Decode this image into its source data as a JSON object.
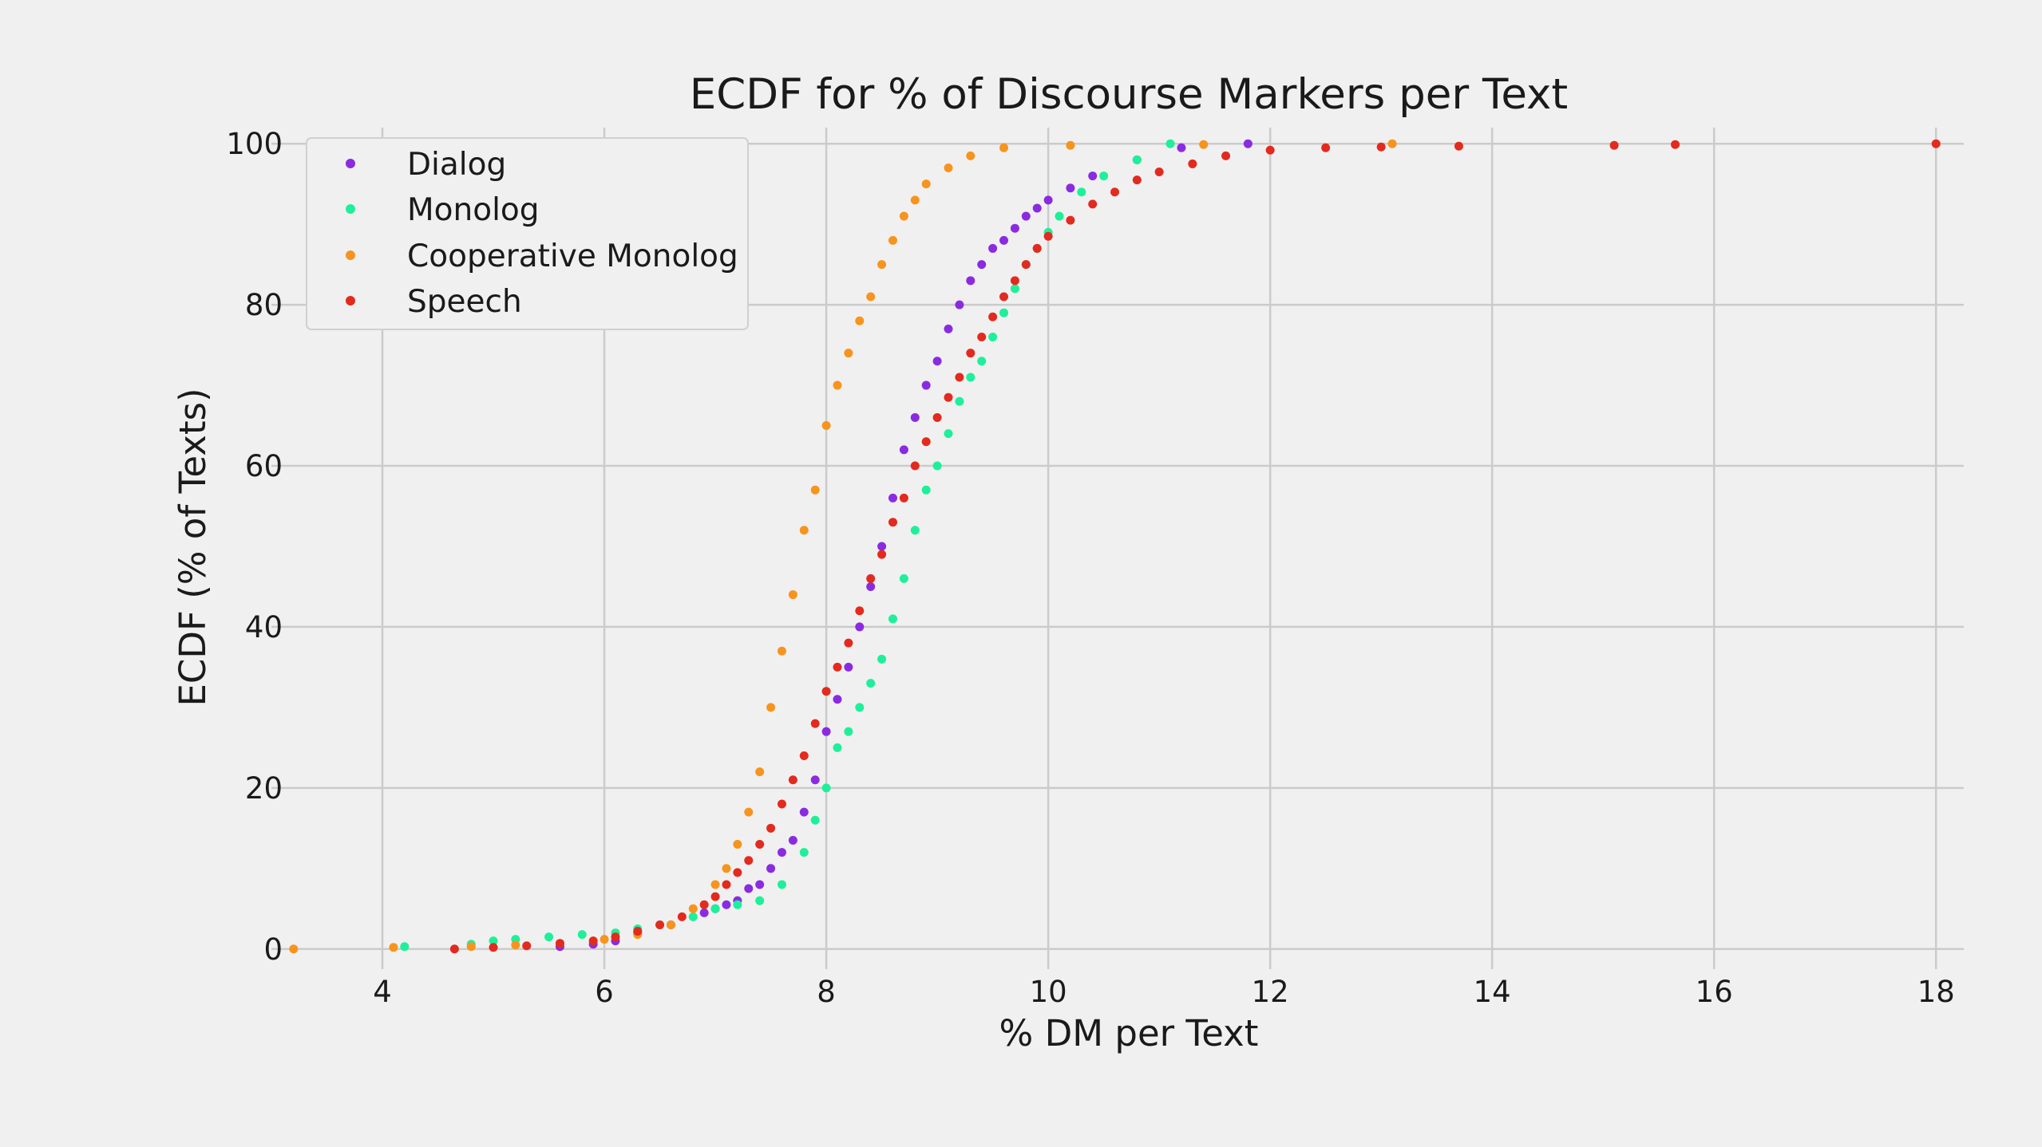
{
  "chart_data": {
    "type": "scatter",
    "title": "ECDF for % of Discourse Markers per Text",
    "xlabel": "% DM per Text",
    "ylabel": "ECDF (% of Texts)",
    "xlim": [
      3.0,
      18.25
    ],
    "ylim": [
      -2.5,
      102.0
    ],
    "x_ticks": [
      4,
      6,
      8,
      10,
      12,
      14,
      16,
      18
    ],
    "y_ticks": [
      0,
      20,
      40,
      60,
      80,
      100
    ],
    "grid": true,
    "legend_position": "top-left",
    "series": [
      {
        "name": "Dialog",
        "color": "#8a2be2",
        "points": [
          [
            5.6,
            0.3
          ],
          [
            5.9,
            0.6
          ],
          [
            6.1,
            1.0
          ],
          [
            6.3,
            2.0
          ],
          [
            6.6,
            3.0
          ],
          [
            6.9,
            4.5
          ],
          [
            7.0,
            5.0
          ],
          [
            7.1,
            5.5
          ],
          [
            7.2,
            6.0
          ],
          [
            7.3,
            7.5
          ],
          [
            7.4,
            8.0
          ],
          [
            7.5,
            10.0
          ],
          [
            7.6,
            12.0
          ],
          [
            7.7,
            13.5
          ],
          [
            7.8,
            17.0
          ],
          [
            7.9,
            21.0
          ],
          [
            8.0,
            27.0
          ],
          [
            8.1,
            31.0
          ],
          [
            8.2,
            35.0
          ],
          [
            8.3,
            40.0
          ],
          [
            8.4,
            45.0
          ],
          [
            8.5,
            50.0
          ],
          [
            8.6,
            56.0
          ],
          [
            8.7,
            62.0
          ],
          [
            8.8,
            66.0
          ],
          [
            8.9,
            70.0
          ],
          [
            9.0,
            73.0
          ],
          [
            9.1,
            77.0
          ],
          [
            9.2,
            80.0
          ],
          [
            9.3,
            83.0
          ],
          [
            9.4,
            85.0
          ],
          [
            9.5,
            87.0
          ],
          [
            9.6,
            88.0
          ],
          [
            9.7,
            89.5
          ],
          [
            9.8,
            91.0
          ],
          [
            9.9,
            92.0
          ],
          [
            10.0,
            93.0
          ],
          [
            10.2,
            94.5
          ],
          [
            10.4,
            96.0
          ],
          [
            10.8,
            98.0
          ],
          [
            11.2,
            99.5
          ],
          [
            11.8,
            100.0
          ]
        ]
      },
      {
        "name": "Monolog",
        "color": "#1ef09a",
        "points": [
          [
            4.2,
            0.3
          ],
          [
            4.8,
            0.6
          ],
          [
            5.0,
            1.0
          ],
          [
            5.2,
            1.2
          ],
          [
            5.5,
            1.5
          ],
          [
            5.8,
            1.8
          ],
          [
            6.1,
            2.0
          ],
          [
            6.3,
            2.5
          ],
          [
            6.5,
            3.0
          ],
          [
            6.8,
            4.0
          ],
          [
            7.0,
            5.0
          ],
          [
            7.2,
            5.5
          ],
          [
            7.4,
            6.0
          ],
          [
            7.6,
            8.0
          ],
          [
            7.8,
            12.0
          ],
          [
            7.9,
            16.0
          ],
          [
            8.0,
            20.0
          ],
          [
            8.1,
            25.0
          ],
          [
            8.2,
            27.0
          ],
          [
            8.3,
            30.0
          ],
          [
            8.4,
            33.0
          ],
          [
            8.5,
            36.0
          ],
          [
            8.6,
            41.0
          ],
          [
            8.7,
            46.0
          ],
          [
            8.8,
            52.0
          ],
          [
            8.9,
            57.0
          ],
          [
            9.0,
            60.0
          ],
          [
            9.1,
            64.0
          ],
          [
            9.2,
            68.0
          ],
          [
            9.3,
            71.0
          ],
          [
            9.4,
            73.0
          ],
          [
            9.5,
            76.0
          ],
          [
            9.6,
            79.0
          ],
          [
            9.7,
            82.0
          ],
          [
            9.8,
            85.0
          ],
          [
            9.9,
            87.0
          ],
          [
            10.0,
            89.0
          ],
          [
            10.1,
            91.0
          ],
          [
            10.3,
            94.0
          ],
          [
            10.5,
            96.0
          ],
          [
            10.8,
            98.0
          ],
          [
            11.1,
            100.0
          ]
        ]
      },
      {
        "name": "Cooperative Monolog",
        "color": "#f7941d",
        "points": [
          [
            3.2,
            0.0
          ],
          [
            4.1,
            0.2
          ],
          [
            4.8,
            0.3
          ],
          [
            5.2,
            0.5
          ],
          [
            5.6,
            0.7
          ],
          [
            6.0,
            1.2
          ],
          [
            6.3,
            1.8
          ],
          [
            6.6,
            3.0
          ],
          [
            6.8,
            5.0
          ],
          [
            7.0,
            8.0
          ],
          [
            7.1,
            10.0
          ],
          [
            7.2,
            13.0
          ],
          [
            7.3,
            17.0
          ],
          [
            7.4,
            22.0
          ],
          [
            7.5,
            30.0
          ],
          [
            7.6,
            37.0
          ],
          [
            7.7,
            44.0
          ],
          [
            7.8,
            52.0
          ],
          [
            7.9,
            57.0
          ],
          [
            8.0,
            65.0
          ],
          [
            8.1,
            70.0
          ],
          [
            8.2,
            74.0
          ],
          [
            8.3,
            78.0
          ],
          [
            8.4,
            81.0
          ],
          [
            8.5,
            85.0
          ],
          [
            8.6,
            88.0
          ],
          [
            8.7,
            91.0
          ],
          [
            8.8,
            93.0
          ],
          [
            8.9,
            95.0
          ],
          [
            9.1,
            97.0
          ],
          [
            9.3,
            98.5
          ],
          [
            9.6,
            99.5
          ],
          [
            10.2,
            99.8
          ],
          [
            11.4,
            99.9
          ],
          [
            13.1,
            100.0
          ]
        ]
      },
      {
        "name": "Speech",
        "color": "#e32a1e",
        "points": [
          [
            4.65,
            0.0
          ],
          [
            5.0,
            0.2
          ],
          [
            5.3,
            0.4
          ],
          [
            5.6,
            0.7
          ],
          [
            5.9,
            1.0
          ],
          [
            6.1,
            1.5
          ],
          [
            6.3,
            2.2
          ],
          [
            6.5,
            3.0
          ],
          [
            6.7,
            4.0
          ],
          [
            6.9,
            5.5
          ],
          [
            7.0,
            6.5
          ],
          [
            7.1,
            8.0
          ],
          [
            7.2,
            9.5
          ],
          [
            7.3,
            11.0
          ],
          [
            7.4,
            13.0
          ],
          [
            7.5,
            15.0
          ],
          [
            7.6,
            18.0
          ],
          [
            7.7,
            21.0
          ],
          [
            7.8,
            24.0
          ],
          [
            7.9,
            28.0
          ],
          [
            8.0,
            32.0
          ],
          [
            8.1,
            35.0
          ],
          [
            8.2,
            38.0
          ],
          [
            8.3,
            42.0
          ],
          [
            8.4,
            46.0
          ],
          [
            8.5,
            49.0
          ],
          [
            8.6,
            53.0
          ],
          [
            8.7,
            56.0
          ],
          [
            8.8,
            60.0
          ],
          [
            8.9,
            63.0
          ],
          [
            9.0,
            66.0
          ],
          [
            9.1,
            68.5
          ],
          [
            9.2,
            71.0
          ],
          [
            9.3,
            74.0
          ],
          [
            9.4,
            76.0
          ],
          [
            9.5,
            78.5
          ],
          [
            9.6,
            81.0
          ],
          [
            9.7,
            83.0
          ],
          [
            9.8,
            85.0
          ],
          [
            9.9,
            87.0
          ],
          [
            10.0,
            88.5
          ],
          [
            10.2,
            90.5
          ],
          [
            10.4,
            92.5
          ],
          [
            10.6,
            94.0
          ],
          [
            10.8,
            95.5
          ],
          [
            11.0,
            96.5
          ],
          [
            11.3,
            97.5
          ],
          [
            11.6,
            98.5
          ],
          [
            12.0,
            99.2
          ],
          [
            12.5,
            99.5
          ],
          [
            13.0,
            99.6
          ],
          [
            13.7,
            99.7
          ],
          [
            15.1,
            99.8
          ],
          [
            15.65,
            99.9
          ],
          [
            18.0,
            100.0
          ]
        ]
      }
    ]
  }
}
